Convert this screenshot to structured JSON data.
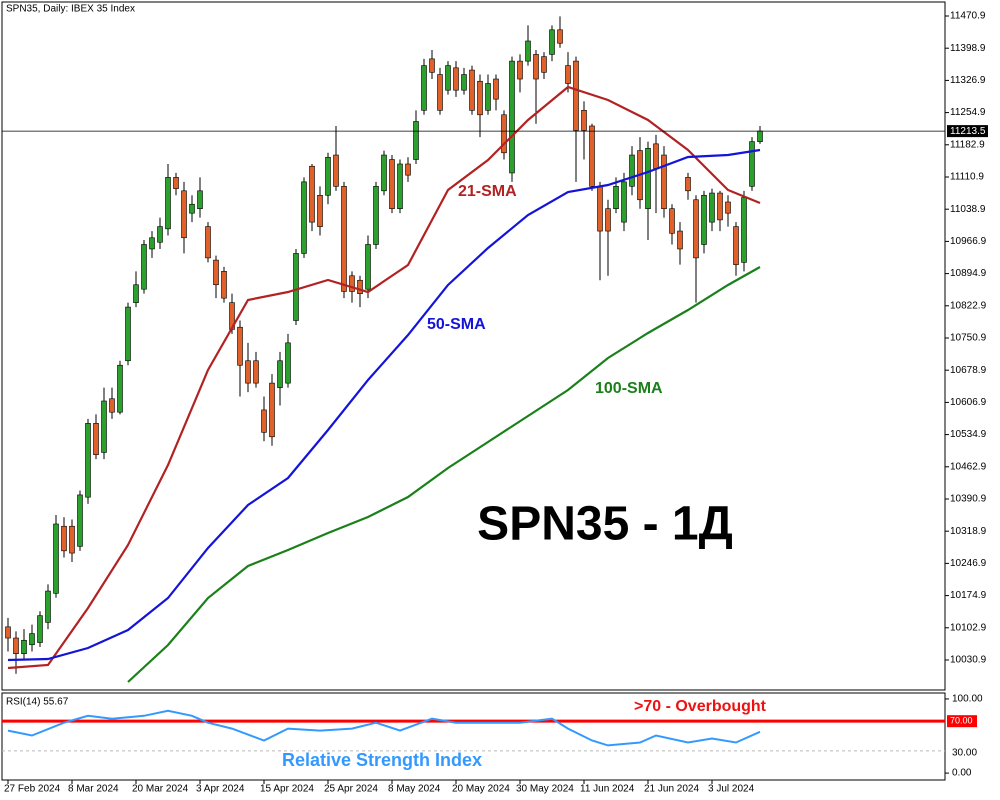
{
  "chart_data": [
    {
      "type": "candlestick",
      "title": "SPN35, Daily:  IBEX 35 Index",
      "watermark": "SPN35 - 1Д",
      "up_color": "#2ca02c",
      "down_color": "#e0622a",
      "open": [
        10105,
        10080,
        10045,
        10065,
        10070,
        10115,
        10180,
        10330,
        10330,
        10285,
        10395,
        10560,
        10495,
        10615,
        10585,
        10700,
        10830,
        10860,
        10950,
        10965,
        10995,
        11110,
        11080,
        11030,
        11040,
        11000,
        10925,
        10900,
        10830,
        10775,
        10700,
        10700,
        10590,
        10650,
        10640,
        10650,
        10790,
        10940,
        11135,
        11070,
        11070,
        11160,
        11090,
        10890,
        10880,
        10860,
        10960,
        11080,
        11150,
        11040,
        11140,
        11150,
        11260,
        11375,
        11340,
        11305,
        11355,
        11305,
        11350,
        11325,
        11260,
        11330,
        11250,
        11120,
        11370,
        11370,
        11385,
        11380,
        11385,
        11440,
        11360,
        11370,
        11260,
        11225,
        11090,
        11040,
        11040,
        11010,
        11090,
        11170,
        11040,
        11185,
        11160,
        11040,
        10990,
        11110,
        11060,
        10960,
        11010,
        11075,
        11055,
        11000,
        10920,
        11090,
        11190
      ],
      "high": [
        10125,
        10095,
        10100,
        10110,
        10140,
        10200,
        10355,
        10350,
        10345,
        10410,
        10570,
        10580,
        10640,
        10640,
        10700,
        10830,
        10900,
        10970,
        10990,
        11020,
        11140,
        11120,
        11100,
        11070,
        11110,
        11010,
        10935,
        10910,
        10850,
        10790,
        10740,
        10720,
        10620,
        10670,
        10720,
        10760,
        10950,
        11110,
        11140,
        11090,
        11165,
        11225,
        11100,
        10900,
        10890,
        10980,
        11100,
        11170,
        11160,
        11150,
        11155,
        11260,
        11375,
        11395,
        11355,
        11370,
        11370,
        11355,
        11360,
        11340,
        11340,
        11340,
        11260,
        11380,
        11385,
        11450,
        11395,
        11390,
        11450,
        11470,
        11390,
        11380,
        11280,
        11230,
        11100,
        11060,
        11110,
        11120,
        11180,
        11200,
        11190,
        11205,
        11180,
        11050,
        11010,
        11120,
        11070,
        11080,
        11085,
        11080,
        11070,
        11010,
        11080,
        11200,
        11225
      ],
      "low": [
        10050,
        10000,
        10030,
        10050,
        10060,
        10100,
        10170,
        10260,
        10250,
        10275,
        10380,
        10480,
        10480,
        10570,
        10580,
        10690,
        10820,
        10850,
        10930,
        10950,
        10980,
        11070,
        10940,
        11010,
        11020,
        10920,
        10840,
        10830,
        10760,
        10620,
        10630,
        10640,
        10520,
        10510,
        10600,
        10640,
        10780,
        10930,
        10990,
        10980,
        11050,
        11080,
        10840,
        10830,
        10820,
        10840,
        10950,
        11070,
        11030,
        11030,
        11100,
        11140,
        11250,
        11330,
        11250,
        11295,
        11290,
        11295,
        11250,
        11200,
        11250,
        11260,
        11150,
        11100,
        11300,
        11360,
        11230,
        11330,
        11370,
        11400,
        11300,
        11100,
        11150,
        11080,
        10880,
        10890,
        11030,
        10990,
        11070,
        11040,
        10970,
        11030,
        11020,
        10960,
        10915,
        11060,
        10830,
        10940,
        10990,
        10990,
        11000,
        10890,
        10900,
        11080,
        11185
      ],
      "close": [
        10080,
        10045,
        10075,
        10090,
        10130,
        10185,
        10335,
        10275,
        10270,
        10400,
        10560,
        10490,
        10610,
        10585,
        10690,
        10820,
        10870,
        10960,
        10975,
        11000,
        11110,
        11085,
        10975,
        11050,
        11080,
        10930,
        10870,
        10840,
        10770,
        10690,
        10650,
        10650,
        10540,
        10530,
        10700,
        10740,
        10940,
        11100,
        11010,
        11000,
        11155,
        11090,
        10855,
        10855,
        10850,
        10960,
        11090,
        11160,
        11040,
        11140,
        11115,
        11235,
        11360,
        11345,
        11260,
        11360,
        11305,
        11340,
        11260,
        11250,
        11320,
        11285,
        11165,
        11370,
        11330,
        11415,
        11330,
        11345,
        11440,
        11410,
        11320,
        11215,
        11215,
        11090,
        10990,
        10990,
        11090,
        11100,
        11160,
        11060,
        11175,
        11130,
        11040,
        10985,
        10950,
        11080,
        10930,
        11070,
        11075,
        11015,
        11030,
        10915,
        11065,
        11190,
        11213.5
      ],
      "series": [
        {
          "name": "21-SMA",
          "color": "#b22222",
          "x": [
            0,
            5,
            10,
            15,
            20,
            25,
            30,
            35,
            40,
            45,
            50,
            55,
            60,
            65,
            70,
            75,
            80,
            85,
            90,
            94
          ],
          "values": [
            10013,
            10019.7,
            10147.2,
            10288.1,
            10466.9,
            10679.4,
            10835.9,
            10853.8,
            10880.6,
            10853.8,
            10914.1,
            11081.8,
            11148.9,
            11238.4,
            11312.1,
            11283.1,
            11238.4,
            11171.3,
            11081.8,
            11052.8
          ]
        },
        {
          "name": "50-SMA",
          "color": "#1414d8",
          "x": [
            0,
            5,
            10,
            15,
            20,
            25,
            30,
            35,
            40,
            45,
            50,
            55,
            60,
            65,
            70,
            75,
            80,
            85,
            90,
            94
          ],
          "values": [
            10030.9,
            10033.2,
            10057.7,
            10098,
            10169.5,
            10281.3,
            10377.5,
            10437.9,
            10545.2,
            10657,
            10757.6,
            10869.4,
            10952.1,
            11025.9,
            11077.4,
            11093,
            11122.1,
            11155.6,
            11160,
            11171.3
          ]
        },
        {
          "name": "100-SMA",
          "color": "#1a801a",
          "x": [
            15,
            20,
            25,
            30,
            35,
            40,
            45,
            50,
            55,
            60,
            65,
            70,
            75,
            80,
            85,
            90,
            94
          ],
          "values": [
            9981.7,
            10064.5,
            10169.5,
            10241.1,
            10276.9,
            10314.9,
            10350.7,
            10395.4,
            10460.2,
            10518.4,
            10576.5,
            10634.6,
            10706.2,
            10762.1,
            10813.5,
            10869.4,
            10909.7
          ]
        }
      ],
      "last_price": 11213.5,
      "xlim": [
        -0.75,
        117.125
      ],
      "xticks": [
        {
          "value": 0,
          "label": "27 Feb 2024"
        },
        {
          "value": 8,
          "label": "8 Mar 2024"
        },
        {
          "value": 16,
          "label": "20 Mar 2024"
        },
        {
          "value": 24,
          "label": "3 Apr 2024"
        },
        {
          "value": 32,
          "label": "15 Apr 2024"
        },
        {
          "value": 40,
          "label": "25 Apr 2024"
        },
        {
          "value": 48,
          "label": "8 May 2024"
        },
        {
          "value": 56,
          "label": "20 May 2024"
        },
        {
          "value": 64,
          "label": "30 May 2024"
        },
        {
          "value": 72,
          "label": "11 Jun 2024"
        },
        {
          "value": 80,
          "label": "21 Jun 2024"
        },
        {
          "value": 88,
          "label": "3 Jul 2024"
        }
      ],
      "ylim": [
        9963.8,
        11502.2
      ],
      "yticks": [
        11470.9,
        11398.9,
        11326.9,
        11254.9,
        11182.9,
        11110.9,
        11038.9,
        10966.9,
        10894.9,
        10822.9,
        10750.9,
        10678.9,
        10606.9,
        10534.9,
        10462.9,
        10390.9,
        10318.9,
        10246.9,
        10174.9,
        10102.9,
        10030.9
      ]
    },
    {
      "type": "line",
      "title": "RSI(14) 55.67",
      "annotation": ">70 - Overbought",
      "series": [
        {
          "name": "Relative Strength Index",
          "color": "#3399ff",
          "x": [
            0,
            3,
            7,
            10,
            13,
            17,
            20,
            23,
            25,
            28,
            32,
            35,
            39,
            43,
            46,
            49,
            53,
            56,
            60,
            64,
            68,
            70,
            73,
            75,
            79,
            81,
            85,
            88,
            91,
            94
          ],
          "values": [
            57.3,
            50.7,
            68,
            77.3,
            73.3,
            77.3,
            84,
            77.3,
            68,
            60,
            44,
            60,
            57.3,
            60,
            68,
            57.3,
            73.3,
            68,
            68,
            68,
            73.3,
            60,
            44,
            37.3,
            41.3,
            50.7,
            41.3,
            46.7,
            41.3,
            55.67
          ]
        }
      ],
      "levels": [
        {
          "value": 70,
          "label": "70.00",
          "color": "#ff0000"
        },
        {
          "value": 30,
          "label": "30.00",
          "color": "#bbbbbb"
        }
      ],
      "xlim": [
        -0.75,
        117.125
      ],
      "ylim": [
        -9.3,
        108
      ],
      "yticks": [
        {
          "value": 100,
          "label": "100.00"
        },
        {
          "value": 0,
          "label": "0.00"
        }
      ]
    }
  ]
}
